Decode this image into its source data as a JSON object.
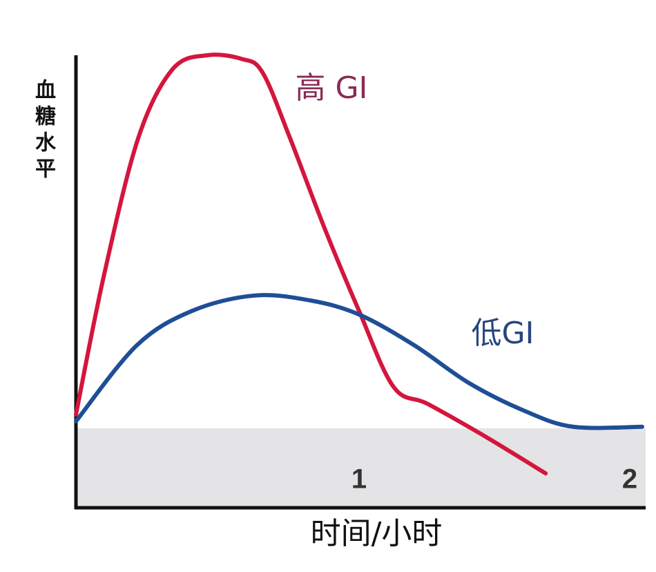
{
  "chart_data": {
    "type": "line",
    "y_label": [
      "血",
      "糖",
      "水",
      "平"
    ],
    "x_label": "时间/小时",
    "xlim": [
      0,
      2
    ],
    "xticks": [
      1,
      2
    ],
    "ylim": [
      0,
      100
    ],
    "series": [
      {
        "name": "高 GI",
        "color": "#d4163c",
        "x": [
          0,
          0.098,
          0.22,
          0.341,
          0.463,
          0.585,
          0.659,
          0.756,
          0.878,
          1,
          1.122,
          1.244,
          1.439,
          1.659
        ],
        "values": [
          20.6,
          51.1,
          81.7,
          96.9,
          100,
          99.2,
          96.2,
          81.7,
          61.8,
          43.5,
          26.7,
          22.9,
          16.0,
          7.6
        ]
      },
      {
        "name": "低GI",
        "color": "#1f4e96",
        "x": [
          0,
          0.215,
          0.41,
          0.63,
          0.829,
          1,
          1.195,
          1.39,
          1.585,
          1.756,
          2
        ],
        "values": [
          19.1,
          35.9,
          43.5,
          46.9,
          45.8,
          42.7,
          35.9,
          27.5,
          21.4,
          17.9,
          17.9
        ]
      }
    ]
  }
}
